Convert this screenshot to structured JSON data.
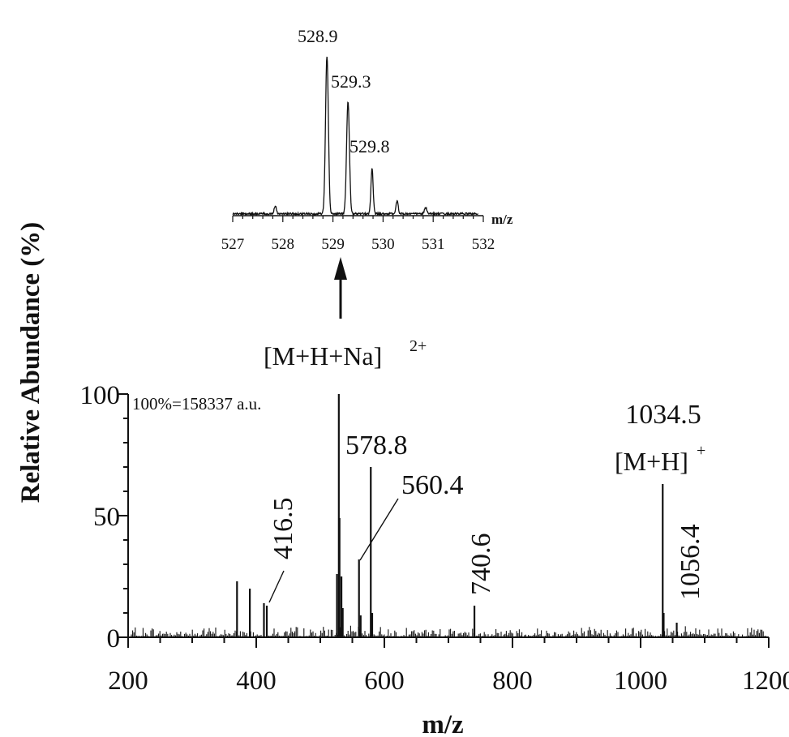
{
  "chart_data": [
    {
      "type": "line",
      "subtype": "mass-spectrum",
      "xlabel": "m/z",
      "ylabel": "Relative Abundance (%)",
      "xlim": [
        200,
        1200
      ],
      "ylim": [
        0,
        100
      ],
      "x_ticks": [
        "200",
        "400",
        "600",
        "800",
        "1000",
        "1200"
      ],
      "y_ticks": [
        "0",
        "50",
        "100"
      ],
      "note": "100%=158337 a.u.",
      "grid": false,
      "peaks": [
        {
          "x": 370,
          "y": 23
        },
        {
          "x": 390,
          "y": 20
        },
        {
          "x": 412,
          "y": 14
        },
        {
          "x": 416.5,
          "y": 13,
          "label": "416.5"
        },
        {
          "x": 526,
          "y": 26
        },
        {
          "x": 528.9,
          "y": 100
        },
        {
          "x": 530,
          "y": 49
        },
        {
          "x": 533,
          "y": 25
        },
        {
          "x": 535,
          "y": 12
        },
        {
          "x": 560.4,
          "y": 32,
          "label": "560.4"
        },
        {
          "x": 563,
          "y": 9
        },
        {
          "x": 578.8,
          "y": 70,
          "label": "578.8"
        },
        {
          "x": 581,
          "y": 10
        },
        {
          "x": 740.6,
          "y": 13,
          "label": "740.6"
        },
        {
          "x": 1034.5,
          "y": 63,
          "label": "1034.5"
        },
        {
          "x": 1036,
          "y": 10
        },
        {
          "x": 1056.4,
          "y": 6,
          "label": "1056.4"
        }
      ],
      "annotations": {
        "mh_label": "[M+H]",
        "mh_charge": "+",
        "mhna_label": "[M+H+Na]",
        "mhna_charge": "2+"
      }
    },
    {
      "type": "line",
      "subtype": "inset-zoom",
      "xlabel": "m/z",
      "xlim": [
        527,
        532
      ],
      "x_ticks": [
        "527",
        "528",
        "529",
        "530",
        "531",
        "532"
      ],
      "peaks": [
        {
          "x": 527.85,
          "y": 5
        },
        {
          "x": 528.88,
          "y": 100,
          "label": "528.9"
        },
        {
          "x": 529.3,
          "y": 71,
          "label": "529.3"
        },
        {
          "x": 529.78,
          "y": 29,
          "label": "529.8"
        },
        {
          "x": 530.28,
          "y": 8
        },
        {
          "x": 530.85,
          "y": 4
        }
      ]
    }
  ]
}
